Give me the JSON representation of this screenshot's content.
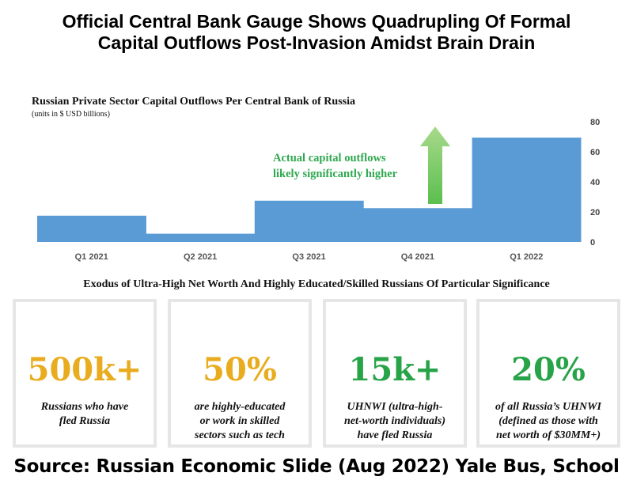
{
  "header": {
    "title_line1": "Official Central Bank Gauge Shows Quadrupling Of Formal",
    "title_line2": "Capital Outflows Post-Invasion Amidst Brain Drain"
  },
  "chart_data": {
    "type": "bar",
    "title": "Russian Private Sector Capital Outflows Per Central Bank of Russia",
    "subtitle": "(units in $ USD billions)",
    "categories": [
      "Q1 2021",
      "Q2 2021",
      "Q3 2021",
      "Q4 2021",
      "Q1 2022"
    ],
    "values": [
      17.5,
      5.5,
      27.5,
      22.5,
      69.5
    ],
    "ylim": [
      0,
      80
    ],
    "yticks": [
      0,
      20,
      40,
      60,
      80
    ],
    "yaxis_position": "right",
    "grid": false,
    "bar_color": "#5b9bd5",
    "annotation": {
      "line1": "Actual capital outflows",
      "line2": "likely significantly higher",
      "color": "#2fa84f",
      "arrow_colors": [
        "#a8d98a",
        "#5bbf4f"
      ]
    }
  },
  "exodus_heading": "Exodus of Ultra-High Net Worth And Highly Educated/Skilled Russians Of Particular Significance",
  "cards": [
    {
      "value": "500k+",
      "color": "#e8ac1e",
      "desc_line1": "Russians who have",
      "desc_line2": "fled Russia",
      "desc_line3": ""
    },
    {
      "value": "50%",
      "color": "#e8ac1e",
      "desc_line1": "are highly-educated",
      "desc_line2": "or work in skilled",
      "desc_line3": "sectors such as tech"
    },
    {
      "value": "15k+",
      "color": "#27a348",
      "desc_line1": "UHNWI (ultra-high-",
      "desc_line2": "net-worth individuals)",
      "desc_line3": "have fled Russia"
    },
    {
      "value": "20%",
      "color": "#27a348",
      "desc_line1": "of all Russia’s UHNWI",
      "desc_line2": "(defined as those with",
      "desc_line3": "net worth of $30MM+)"
    }
  ],
  "source": "Source:  Russian Economic Slide (Aug 2022) Yale Bus, School"
}
